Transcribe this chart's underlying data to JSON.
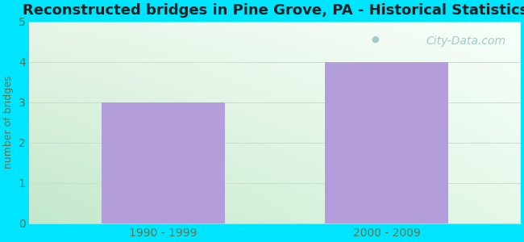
{
  "title": "Reconstructed bridges in Pine Grove, PA - Historical Statistics",
  "categories": [
    "1990 - 1999",
    "2000 - 2009"
  ],
  "values": [
    3,
    4
  ],
  "bar_color": "#b39ddb",
  "ylabel": "number of bridges",
  "ylim": [
    0,
    5
  ],
  "yticks": [
    0,
    1,
    2,
    3,
    4,
    5
  ],
  "title_fontsize": 13,
  "axis_label_fontsize": 9,
  "tick_fontsize": 10,
  "background_outer": "#00e5ff",
  "bg_color_topleft": "#e8f5e9",
  "bg_color_topright": "#f5fff5",
  "bg_color_bottomleft": "#c8ecd0",
  "bg_color_bottomright": "#eafaef",
  "grid_color": "#ccddcc",
  "watermark_text": "City-Data.com",
  "title_color": "#222222",
  "axis_label_color": "#557755",
  "tick_color": "#557755",
  "bar_width": 0.55
}
